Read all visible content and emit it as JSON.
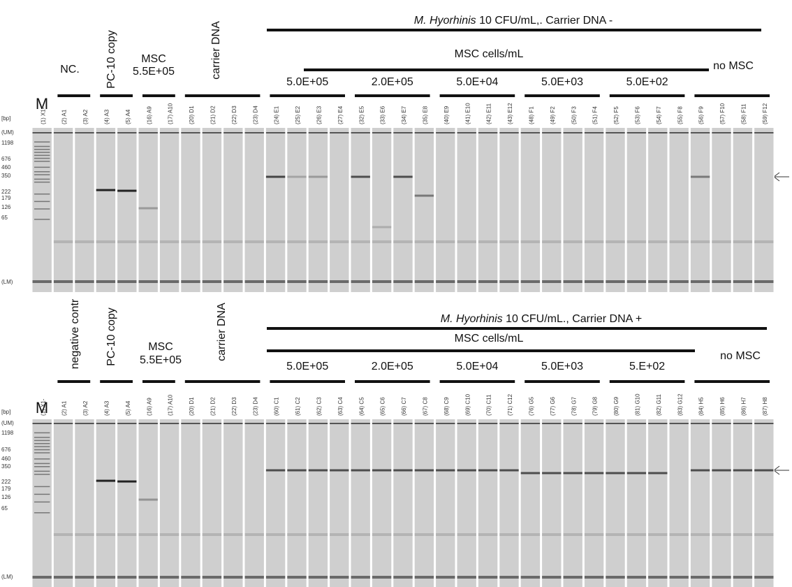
{
  "panels": [
    {
      "title_italic": "M. Hyorhinis",
      "title_rest": " 10 CFU/mL,. Carrier DNA -",
      "subtitle": "MSC cells/mL",
      "no_msc": "no MSC",
      "marker": "M",
      "control": "NC.",
      "positive": "PC-10 copy",
      "msc": "MSC",
      "msc_conc": "5.5E+05",
      "carrier": "carrier DNA",
      "concentrations": [
        "5.0E+05",
        "2.0E+05",
        "5.0E+04",
        "5.0E+03",
        "5.0E+02"
      ],
      "sizes": [
        "[bp]",
        "(UM)",
        "1198",
        "676",
        "460",
        "350",
        "222",
        "179",
        "126",
        "65",
        "(LM)"
      ],
      "lanes": [
        "(1) X1-",
        "(2) A1",
        "(3) A2",
        "(4) A3",
        "(5) A4",
        "(16) A9",
        "(17) A10",
        "(20) D1",
        "(21) D2",
        "(22) D3",
        "(23) D4",
        "(24) E1",
        "(25) E2",
        "(26) E3",
        "(27) E4",
        "(32) E5",
        "(33) E6",
        "(34) E7",
        "(35) E8",
        "(40) E9",
        "(41) E10",
        "(42) E11",
        "(43) E12",
        "(48) F1",
        "(49) F2",
        "(50) F3",
        "(51) F4",
        "(52) F5",
        "(53) F6",
        "(54) F7",
        "(55) F8",
        "(56) F9",
        "(57) F10",
        "(58) F11",
        "(59) F12"
      ]
    },
    {
      "title_italic": "M. Hyorhinis",
      "title_rest": " 10 CFU/mL., Carrier DNA +",
      "subtitle": "MSC cells/mL",
      "no_msc": "no MSC",
      "marker": "M",
      "control": "negative contr",
      "positive": "PC-10 copy",
      "msc": "MSC",
      "msc_conc": "5.5E+05",
      "carrier": "carrier DNA",
      "concentrations": [
        "5.0E+05",
        "2.0E+05",
        "5.0E+04",
        "5.0E+03",
        "5.E+02"
      ],
      "sizes": [
        "[bp]",
        "(UM)",
        "1198",
        "676",
        "460",
        "350",
        "222",
        "179",
        "126",
        "65",
        "(LM)"
      ],
      "lanes": [
        "(1) X1-",
        "(2) A1",
        "(3) A2",
        "(4) A3",
        "(5) A4",
        "(16) A9",
        "(17) A10",
        "(20) D1",
        "(21) D2",
        "(22) D3",
        "(23) D4",
        "(60) C1",
        "(61) C2",
        "(62) C3",
        "(63) C4",
        "(64) C5",
        "(65) C6",
        "(66) C7",
        "(67) C8",
        "(68) C9",
        "(69) C10",
        "(70) C11",
        "(71) C12",
        "(76) G5",
        "(77) G6",
        "(78) G7",
        "(79) G8",
        "(80) G9",
        "(81) G10",
        "(82) G11",
        "(83) G12",
        "(84) H5",
        "(85) H6",
        "(86) H7",
        "(87) H8"
      ]
    }
  ]
}
